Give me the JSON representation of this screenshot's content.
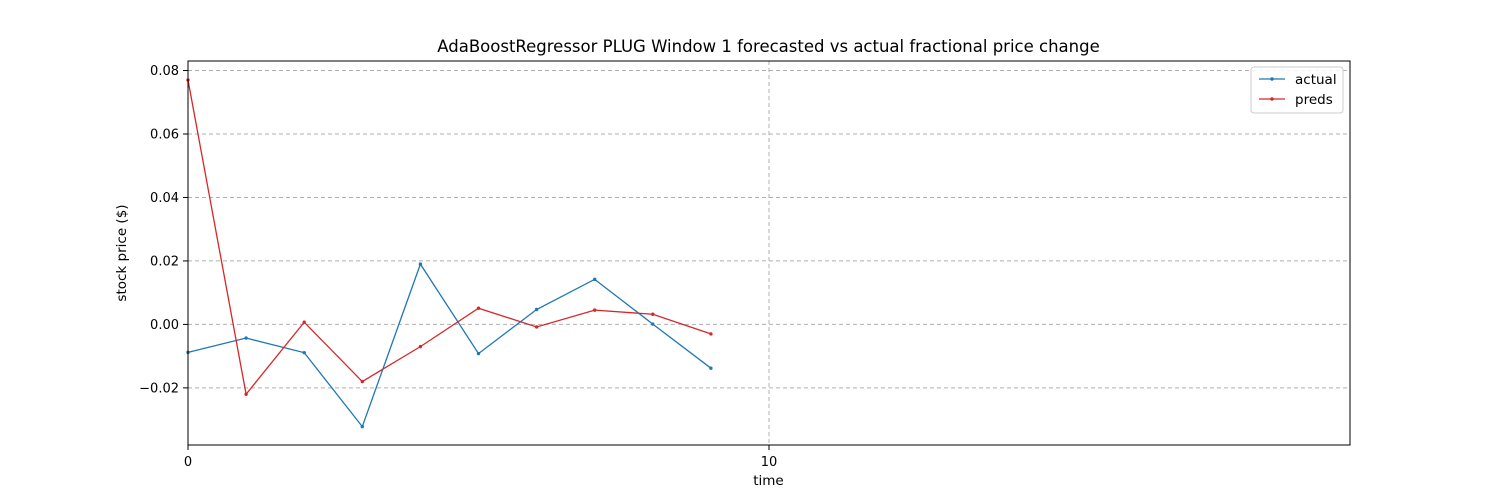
{
  "chart_data": {
    "type": "line",
    "title": "AdaBoostRegressor PLUG Window 1 forecasted vs actual fractional price change",
    "xlabel": "time",
    "ylabel": "stock price ($)",
    "xlim": [
      0,
      20
    ],
    "ylim": [
      -0.038,
      0.083
    ],
    "xticks": [
      0,
      10
    ],
    "xtick_labels": [
      "0",
      "10"
    ],
    "yticks": [
      -0.02,
      0.0,
      0.02,
      0.04,
      0.06,
      0.08
    ],
    "ytick_labels": [
      "−0.02",
      "0.00",
      "0.02",
      "0.04",
      "0.06",
      "0.08"
    ],
    "grid": true,
    "legend_position": "top-right",
    "x": [
      0,
      1,
      2,
      3,
      4,
      5,
      6,
      7,
      8,
      9
    ],
    "series": [
      {
        "name": "actual",
        "color": "#1f77b4",
        "values": [
          -0.0088,
          -0.0043,
          -0.0089,
          -0.0322,
          0.019,
          -0.0092,
          0.0047,
          0.0142,
          0.0001,
          -0.0138
        ]
      },
      {
        "name": "preds",
        "color": "#d62728",
        "values": [
          0.077,
          -0.022,
          0.0007,
          -0.018,
          -0.007,
          0.0051,
          -0.0008,
          0.0045,
          0.0032,
          -0.003
        ]
      }
    ]
  }
}
